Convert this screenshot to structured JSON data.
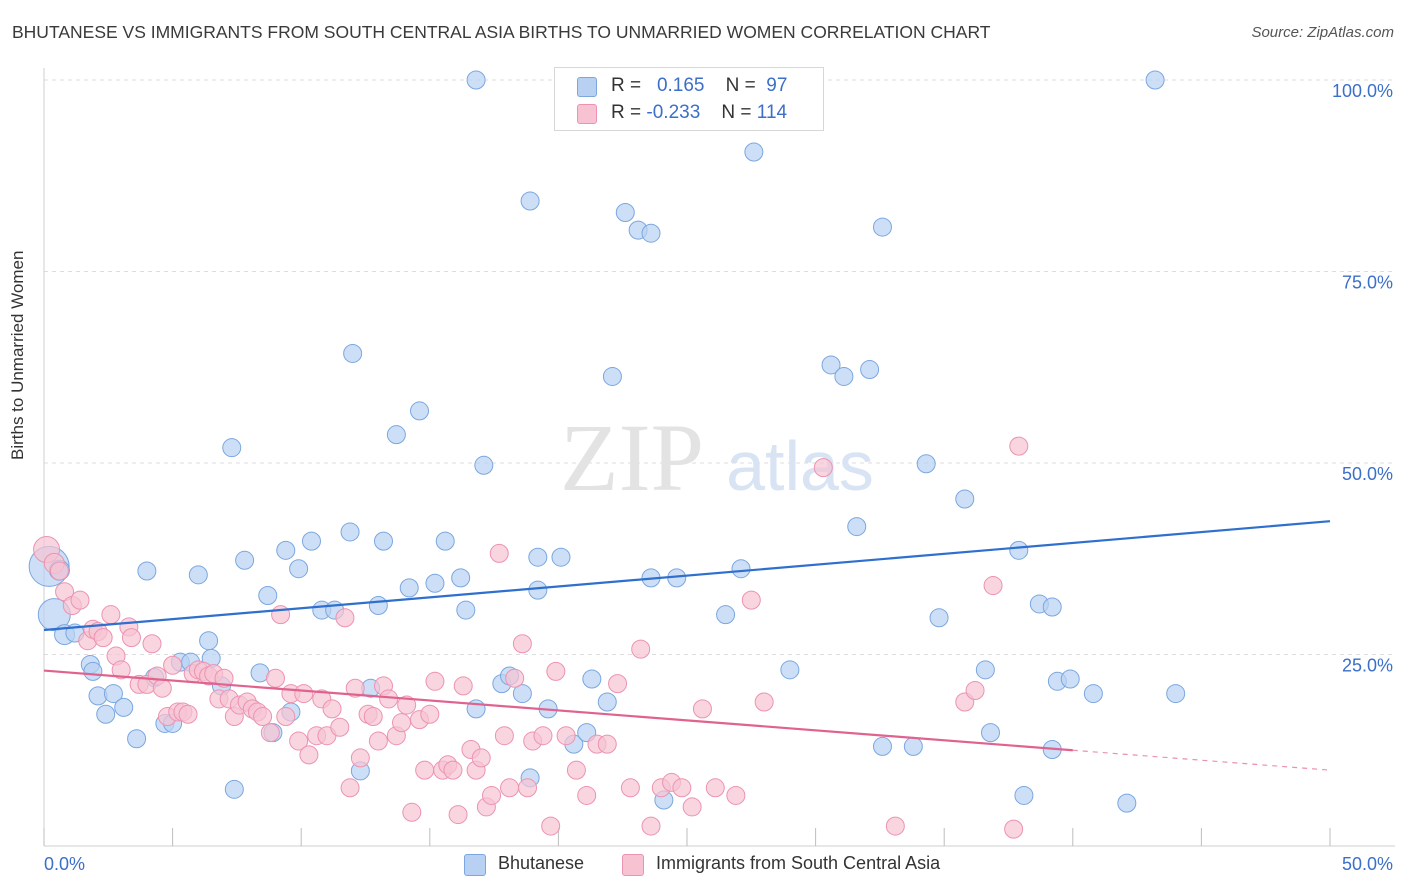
{
  "title": "BHUTANESE VS IMMIGRANTS FROM SOUTH CENTRAL ASIA BIRTHS TO UNMARRIED WOMEN CORRELATION CHART",
  "source": "Source: ZipAtlas.com",
  "watermark": {
    "zip": "ZIP",
    "atlas": "atlas"
  },
  "colors": {
    "blue_fill": "#b8d1f2",
    "blue_stroke": "#7aa7e0",
    "blue_line": "#2f6fce",
    "pink_fill": "#f7c3d3",
    "pink_stroke": "#ec93b1",
    "pink_line": "#e0628f",
    "tick_label": "#3b6fc8",
    "grid": "#dddddd"
  },
  "legend": {
    "rows": [
      {
        "r_label": "R =",
        "r_value": "0.165",
        "n_label": "N =",
        "n_value": "97"
      },
      {
        "r_label": "R =",
        "r_value": "-0.233",
        "n_label": "N =",
        "n_value": "114"
      }
    ]
  },
  "bottom_legend": {
    "series_a": "Bhutanese",
    "series_b": "Immigrants from South Central Asia"
  },
  "chart_data": {
    "type": "scatter",
    "title": "BHUTANESE VS IMMIGRANTS FROM SOUTH CENTRAL ASIA BIRTHS TO UNMARRIED WOMEN CORRELATION CHART",
    "xlabel": "",
    "ylabel": "Births to Unmarried Women",
    "xlim": [
      0,
      50
    ],
    "ylim": [
      0,
      100
    ],
    "x_tick_labels": [
      "0.0%",
      "50.0%"
    ],
    "y_ticks": [
      25,
      50,
      75,
      100
    ],
    "y_tick_labels": [
      "25.0%",
      "50.0%",
      "75.0%",
      "100.0%"
    ],
    "grid": true,
    "legend_position": "top-center",
    "series": [
      {
        "name": "Bhutanese",
        "r": 0.165,
        "n": 97,
        "trend": {
          "x": [
            0,
            50
          ],
          "y": [
            28.2,
            42.4
          ],
          "dashed_from": null
        },
        "points": [
          [
            0.2,
            36.5,
            20
          ],
          [
            0.4,
            30.2,
            16
          ],
          [
            0.6,
            36.0,
            10
          ],
          [
            0.8,
            27.6,
            10
          ],
          [
            1.2,
            27.8,
            9
          ],
          [
            1.8,
            23.7,
            9
          ],
          [
            1.9,
            22.8,
            9
          ],
          [
            2.1,
            19.6,
            9
          ],
          [
            2.4,
            17.2,
            9
          ],
          [
            2.7,
            19.9,
            9
          ],
          [
            3.1,
            18.1,
            9
          ],
          [
            3.6,
            14.0,
            9
          ],
          [
            4.0,
            35.9,
            9
          ],
          [
            4.3,
            22.0,
            9
          ],
          [
            4.7,
            16.0,
            9
          ],
          [
            5.0,
            16.0,
            9
          ],
          [
            5.3,
            24.0,
            9
          ],
          [
            5.7,
            24.0,
            9
          ],
          [
            6.0,
            35.4,
            9
          ],
          [
            6.4,
            26.8,
            9
          ],
          [
            6.5,
            24.5,
            9
          ],
          [
            6.9,
            20.9,
            9
          ],
          [
            7.3,
            52.0,
            9
          ],
          [
            7.4,
            7.4,
            9
          ],
          [
            7.8,
            37.3,
            9
          ],
          [
            8.4,
            22.6,
            9
          ],
          [
            8.7,
            32.7,
            9
          ],
          [
            8.9,
            14.8,
            9
          ],
          [
            9.4,
            38.6,
            9
          ],
          [
            9.6,
            17.5,
            9
          ],
          [
            9.9,
            36.2,
            9
          ],
          [
            10.4,
            39.8,
            9
          ],
          [
            10.8,
            30.8,
            9
          ],
          [
            11.3,
            30.8,
            9
          ],
          [
            11.9,
            41.0,
            9
          ],
          [
            12.0,
            64.3,
            9
          ],
          [
            12.3,
            9.8,
            9
          ],
          [
            12.7,
            20.6,
            9
          ],
          [
            13.0,
            31.4,
            9
          ],
          [
            13.2,
            39.8,
            9
          ],
          [
            13.7,
            53.7,
            9
          ],
          [
            14.2,
            33.7,
            9
          ],
          [
            14.6,
            56.8,
            9
          ],
          [
            15.2,
            34.3,
            9
          ],
          [
            15.6,
            39.8,
            9
          ],
          [
            16.2,
            35.0,
            9
          ],
          [
            16.4,
            30.8,
            9
          ],
          [
            16.8,
            17.9,
            9
          ],
          [
            17.1,
            49.7,
            9
          ],
          [
            16.8,
            100.0,
            9
          ],
          [
            17.8,
            21.2,
            9
          ],
          [
            18.1,
            22.2,
            9
          ],
          [
            18.6,
            19.9,
            9
          ],
          [
            18.9,
            8.9,
            9
          ],
          [
            19.2,
            33.4,
            9
          ],
          [
            18.9,
            84.2,
            9
          ],
          [
            19.2,
            37.7,
            9
          ],
          [
            19.6,
            17.9,
            9
          ],
          [
            20.1,
            37.7,
            9
          ],
          [
            20.6,
            13.3,
            9
          ],
          [
            21.1,
            14.8,
            9
          ],
          [
            21.3,
            21.8,
            9
          ],
          [
            21.9,
            18.8,
            9
          ],
          [
            22.1,
            61.3,
            9
          ],
          [
            22.6,
            82.7,
            9
          ],
          [
            23.1,
            80.4,
            9
          ],
          [
            23.6,
            80.0,
            9
          ],
          [
            23.6,
            35.0,
            9
          ],
          [
            24.1,
            6.0,
            9
          ],
          [
            24.6,
            35.0,
            9
          ],
          [
            26.5,
            30.2,
            9
          ],
          [
            27.1,
            36.2,
            9
          ],
          [
            27.6,
            90.6,
            9
          ],
          [
            29.0,
            23.0,
            9
          ],
          [
            30.6,
            62.8,
            9
          ],
          [
            31.1,
            61.3,
            9
          ],
          [
            31.6,
            41.7,
            9
          ],
          [
            32.1,
            62.2,
            9
          ],
          [
            32.6,
            80.8,
            9
          ],
          [
            32.6,
            13.0,
            9
          ],
          [
            33.8,
            13.0,
            9
          ],
          [
            34.3,
            49.9,
            9
          ],
          [
            34.8,
            29.8,
            9
          ],
          [
            35.8,
            45.3,
            9
          ],
          [
            36.6,
            23.0,
            9
          ],
          [
            36.8,
            14.8,
            9
          ],
          [
            37.9,
            38.6,
            9
          ],
          [
            38.1,
            6.6,
            9
          ],
          [
            38.7,
            31.6,
            9
          ],
          [
            39.2,
            31.2,
            9
          ],
          [
            39.2,
            12.6,
            9
          ],
          [
            39.4,
            21.5,
            9
          ],
          [
            39.9,
            21.8,
            9
          ],
          [
            40.8,
            19.9,
            9
          ],
          [
            42.1,
            5.6,
            9
          ],
          [
            43.2,
            100.0,
            9
          ],
          [
            44.0,
            19.9,
            9
          ]
        ]
      },
      {
        "name": "Immigrants from South Central Asia",
        "r": -0.233,
        "n": 114,
        "trend": {
          "x": [
            0,
            50
          ],
          "y": [
            22.9,
            9.9
          ],
          "dashed_from": 40.0
        },
        "points": [
          [
            0.1,
            38.7,
            13
          ],
          [
            0.4,
            36.9,
            10
          ],
          [
            0.6,
            35.9,
            9
          ],
          [
            0.8,
            33.2,
            9
          ],
          [
            1.1,
            31.4,
            9
          ],
          [
            1.4,
            32.1,
            9
          ],
          [
            1.7,
            26.8,
            9
          ],
          [
            1.9,
            28.3,
            9
          ],
          [
            2.1,
            28.0,
            9
          ],
          [
            2.3,
            27.2,
            9
          ],
          [
            2.6,
            30.2,
            9
          ],
          [
            2.8,
            24.8,
            9
          ],
          [
            3.0,
            23.0,
            9
          ],
          [
            3.3,
            28.6,
            9
          ],
          [
            3.4,
            27.2,
            9
          ],
          [
            3.7,
            21.1,
            9
          ],
          [
            4.0,
            21.1,
            9
          ],
          [
            4.2,
            26.4,
            9
          ],
          [
            4.4,
            22.2,
            9
          ],
          [
            4.6,
            20.6,
            9
          ],
          [
            4.8,
            16.9,
            9
          ],
          [
            5.0,
            23.6,
            9
          ],
          [
            5.2,
            17.5,
            9
          ],
          [
            5.4,
            17.5,
            9
          ],
          [
            5.6,
            17.2,
            9
          ],
          [
            5.8,
            22.5,
            9
          ],
          [
            6.0,
            23.0,
            9
          ],
          [
            6.2,
            22.8,
            9
          ],
          [
            6.4,
            22.2,
            9
          ],
          [
            6.6,
            22.5,
            9
          ],
          [
            6.8,
            19.2,
            9
          ],
          [
            7.0,
            21.9,
            9
          ],
          [
            7.2,
            19.2,
            9
          ],
          [
            7.4,
            16.9,
            9
          ],
          [
            7.6,
            18.4,
            9
          ],
          [
            7.9,
            18.8,
            9
          ],
          [
            8.1,
            17.9,
            9
          ],
          [
            8.3,
            17.5,
            9
          ],
          [
            8.5,
            16.9,
            9
          ],
          [
            8.8,
            14.8,
            9
          ],
          [
            9.0,
            21.9,
            9
          ],
          [
            9.2,
            30.2,
            9
          ],
          [
            9.4,
            16.9,
            9
          ],
          [
            9.6,
            19.9,
            9
          ],
          [
            9.9,
            13.7,
            9
          ],
          [
            10.1,
            19.9,
            9
          ],
          [
            10.3,
            11.9,
            9
          ],
          [
            10.6,
            14.4,
            9
          ],
          [
            10.8,
            19.2,
            9
          ],
          [
            11.0,
            14.4,
            9
          ],
          [
            11.2,
            17.9,
            9
          ],
          [
            11.5,
            15.5,
            9
          ],
          [
            11.7,
            29.8,
            9
          ],
          [
            11.9,
            7.6,
            9
          ],
          [
            12.1,
            20.6,
            9
          ],
          [
            12.3,
            11.5,
            9
          ],
          [
            12.6,
            17.2,
            9
          ],
          [
            12.8,
            16.9,
            9
          ],
          [
            13.0,
            13.7,
            9
          ],
          [
            13.2,
            20.9,
            9
          ],
          [
            13.4,
            19.2,
            9
          ],
          [
            13.7,
            14.4,
            9
          ],
          [
            13.9,
            16.1,
            9
          ],
          [
            14.1,
            18.4,
            9
          ],
          [
            14.3,
            4.4,
            9
          ],
          [
            14.6,
            16.5,
            9
          ],
          [
            14.8,
            9.9,
            9
          ],
          [
            15.0,
            17.2,
            9
          ],
          [
            15.2,
            21.5,
            9
          ],
          [
            15.5,
            9.9,
            9
          ],
          [
            15.7,
            10.6,
            9
          ],
          [
            15.9,
            9.9,
            9
          ],
          [
            16.1,
            4.1,
            9
          ],
          [
            16.3,
            20.9,
            9
          ],
          [
            16.6,
            12.6,
            9
          ],
          [
            16.8,
            9.9,
            9
          ],
          [
            17.0,
            11.5,
            9
          ],
          [
            17.2,
            5.1,
            9
          ],
          [
            17.4,
            6.6,
            9
          ],
          [
            17.7,
            38.2,
            9
          ],
          [
            17.9,
            14.4,
            9
          ],
          [
            18.1,
            7.6,
            9
          ],
          [
            18.3,
            21.9,
            9
          ],
          [
            18.6,
            26.4,
            9
          ],
          [
            18.8,
            7.6,
            9
          ],
          [
            19.0,
            13.7,
            9
          ],
          [
            19.4,
            14.4,
            9
          ],
          [
            19.7,
            2.6,
            9
          ],
          [
            19.9,
            22.8,
            9
          ],
          [
            20.3,
            14.4,
            9
          ],
          [
            20.7,
            9.9,
            9
          ],
          [
            21.1,
            6.6,
            9
          ],
          [
            21.5,
            13.3,
            9
          ],
          [
            21.9,
            13.3,
            9
          ],
          [
            22.3,
            21.2,
            9
          ],
          [
            22.8,
            7.6,
            9
          ],
          [
            23.2,
            25.7,
            9
          ],
          [
            23.6,
            2.6,
            9
          ],
          [
            24.0,
            7.6,
            9
          ],
          [
            24.4,
            8.3,
            9
          ],
          [
            24.8,
            7.6,
            9
          ],
          [
            25.2,
            5.1,
            9
          ],
          [
            25.6,
            17.9,
            9
          ],
          [
            26.1,
            7.6,
            9
          ],
          [
            26.9,
            6.6,
            9
          ],
          [
            27.5,
            32.1,
            9
          ],
          [
            28.0,
            18.8,
            9
          ],
          [
            30.3,
            49.4,
            9
          ],
          [
            33.1,
            2.6,
            9
          ],
          [
            35.8,
            18.8,
            9
          ],
          [
            36.2,
            20.3,
            9
          ],
          [
            36.9,
            34.0,
            9
          ],
          [
            37.7,
            2.2,
            9
          ],
          [
            37.9,
            52.2,
            9
          ]
        ]
      }
    ]
  }
}
